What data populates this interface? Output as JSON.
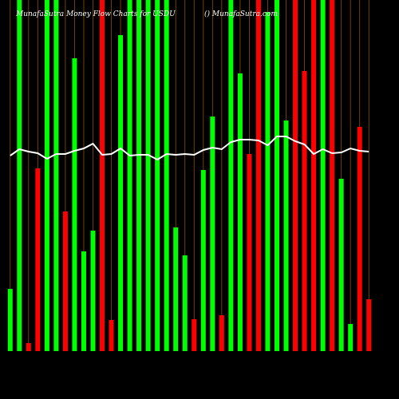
{
  "chart_data": {
    "type": "bar",
    "title": "MunafaSutra Money Flow Charts for USDU",
    "subtitle": "() MunafaSutra.com",
    "ylim": [
      0,
      440
    ],
    "bar_colors": [
      "#00ff00",
      "#00ff00",
      "#ff0000",
      "#ff0000",
      "#00ff00",
      "#00ff00",
      "#ff0000",
      "#00ff00",
      "#00ff00",
      "#00ff00",
      "#ff0000",
      "#ff0000",
      "#00ff00",
      "#00ff00",
      "#00ff00",
      "#00ff00",
      "#00ff00",
      "#00ff00",
      "#00ff00",
      "#00ff00",
      "#ff0000",
      "#00ff00",
      "#00ff00",
      "#ff0000",
      "#00ff00",
      "#00ff00",
      "#ff0000",
      "#ff0000",
      "#00ff00",
      "#00ff00",
      "#00ff00",
      "#ff0000",
      "#ff0000",
      "#ff0000",
      "#00ff00",
      "#ff0000",
      "#00ff00",
      "#00ff00",
      "#ff0000",
      "#ff0000"
    ],
    "values": [
      78,
      440,
      10,
      229,
      440,
      440,
      175,
      367,
      125,
      151,
      440,
      39,
      396,
      440,
      440,
      440,
      440,
      440,
      155,
      120,
      40,
      227,
      294,
      45,
      440,
      348,
      247,
      440,
      425,
      440,
      289,
      440,
      351,
      440,
      440,
      440,
      216,
      34,
      281,
      65
    ],
    "line_color": "#ffffff",
    "line_values": [
      245,
      253,
      250,
      248,
      241,
      247,
      247,
      251,
      254,
      260,
      246,
      247,
      254,
      245,
      246,
      246,
      240,
      247,
      246,
      247,
      246,
      252,
      255,
      253,
      262,
      265,
      265,
      264,
      258,
      269,
      269,
      263,
      259,
      247,
      253,
      248,
      249,
      254,
      251,
      250
    ]
  }
}
